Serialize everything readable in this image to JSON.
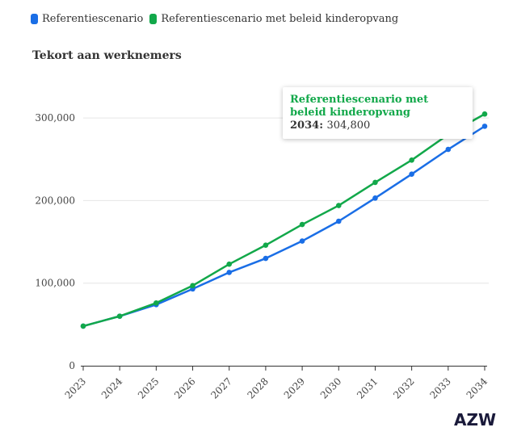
{
  "legend": {
    "items": [
      {
        "label": "Referentiescenario",
        "color": "#1a6ee6"
      },
      {
        "label": "Referentiescenario met beleid kinderopvang",
        "color": "#12a84a"
      }
    ]
  },
  "logo_text": "AZW",
  "tooltip": {
    "series": "Referentiescenario met beleid kinderopvang",
    "x": "2034",
    "value": "304,800",
    "color": "#12a84a"
  },
  "chart_data": {
    "type": "line",
    "title": "Tekort aan werknemers",
    "xlabel": "",
    "ylabel": "",
    "categories": [
      "2023",
      "2024",
      "2025",
      "2026",
      "2027",
      "2028",
      "2029",
      "2030",
      "2031",
      "2032",
      "2033",
      "2034"
    ],
    "ylim": [
      0,
      350000
    ],
    "yticks": [
      0,
      100000,
      200000,
      300000
    ],
    "ytick_labels": [
      "0",
      "100,000",
      "200,000",
      "300,000"
    ],
    "series": [
      {
        "name": "Referentiescenario",
        "color": "#1a6ee6",
        "values": [
          48000,
          60000,
          74000,
          93000,
          113000,
          130000,
          151000,
          175000,
          203000,
          232000,
          262000,
          290000
        ]
      },
      {
        "name": "Referentiescenario met beleid kinderopvang",
        "color": "#12a84a",
        "values": [
          48000,
          60000,
          76000,
          97000,
          123000,
          146000,
          171000,
          194000,
          222000,
          249000,
          280000,
          304800
        ]
      }
    ],
    "grid": "horizontal",
    "legend_position": "top-left"
  }
}
